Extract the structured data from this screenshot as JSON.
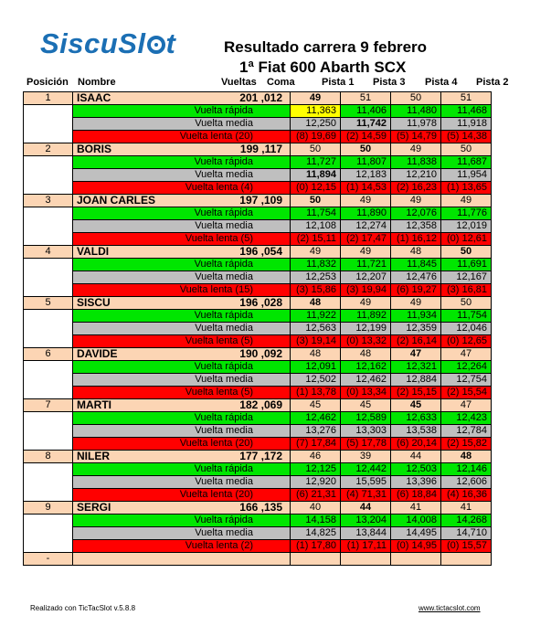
{
  "logo": "SiscuSl",
  "logo_tail": "t",
  "title": "Resultado carrera 9 febrero",
  "subtitle": "1ª Fiat 600 Abarth SCX",
  "headers": {
    "posicion": "Posición",
    "nombre": "Nombre",
    "vueltas": "Vueltas",
    "coma": "Coma",
    "pistas": [
      "Pista 1",
      "Pista 3",
      "Pista 4",
      "Pista 2"
    ]
  },
  "labels": {
    "fast": "Vuelta rápida",
    "avg": "Vuelta media"
  },
  "racers": [
    {
      "pos": "1",
      "name": "ISAAC",
      "laps": "201",
      "coma": ",012",
      "pistas": [
        "49",
        "51",
        "50",
        "51"
      ],
      "bold": [
        0
      ],
      "slow": "Vuelta  lenta (20)",
      "fast": [
        "11,363",
        "11,406",
        "11,480",
        "11,468"
      ],
      "fast_bold": [],
      "fast_hl": [
        0
      ],
      "avg": [
        "12,250",
        "11,742",
        "11,978",
        "11,918"
      ],
      "avg_bold": [
        1
      ],
      "slowv": [
        "(8) 19,69",
        "(2) 14,59",
        "(5) 14,79",
        "(5) 14,38"
      ]
    },
    {
      "pos": "2",
      "name": "BORIS",
      "laps": "199",
      "coma": ",117",
      "pistas": [
        "50",
        "50",
        "49",
        "50"
      ],
      "bold": [
        1
      ],
      "slow": "Vuelta  lenta (4)",
      "fast": [
        "11,727",
        "11,807",
        "11,838",
        "11,687"
      ],
      "fast_bold": [],
      "fast_hl": [],
      "avg": [
        "11,894",
        "12,183",
        "12,210",
        "11,954"
      ],
      "avg_bold": [
        0
      ],
      "slowv": [
        "(0) 12,15",
        "(1) 14,53",
        "(2) 16,23",
        "(1) 13,65"
      ]
    },
    {
      "pos": "3",
      "name": "JOAN CARLES",
      "laps": "197",
      "coma": ",109",
      "pistas": [
        "50",
        "49",
        "49",
        "49"
      ],
      "bold": [
        0
      ],
      "slow": "Vuelta  lenta (5)",
      "fast": [
        "11,754",
        "11,890",
        "12,076",
        "11,776"
      ],
      "fast_bold": [],
      "fast_hl": [],
      "avg": [
        "12,108",
        "12,274",
        "12,358",
        "12,019"
      ],
      "avg_bold": [],
      "slowv": [
        "(2) 15,11",
        "(2) 17,47",
        "(1) 16,12",
        "(0) 12,61"
      ]
    },
    {
      "pos": "4",
      "name": "VALDI",
      "laps": "196",
      "coma": ",054",
      "pistas": [
        "49",
        "49",
        "48",
        "50"
      ],
      "bold": [
        3
      ],
      "slow": "Vuelta  lenta (15)",
      "fast": [
        "11,832",
        "11,721",
        "11,845",
        "11,691"
      ],
      "fast_bold": [],
      "fast_hl": [],
      "avg": [
        "12,253",
        "12,207",
        "12,476",
        "12,167"
      ],
      "avg_bold": [],
      "slowv": [
        "(3) 15,86",
        "(3) 19,94",
        "(6) 19,27",
        "(3) 16,81"
      ]
    },
    {
      "pos": "5",
      "name": "SISCU",
      "laps": "196",
      "coma": ",028",
      "pistas": [
        "48",
        "49",
        "49",
        "50"
      ],
      "bold": [
        0
      ],
      "slow": "Vuelta  lenta (5)",
      "fast": [
        "11,922",
        "11,892",
        "11,934",
        "11,754"
      ],
      "fast_bold": [],
      "fast_hl": [],
      "avg": [
        "12,563",
        "12,199",
        "12,359",
        "12,046"
      ],
      "avg_bold": [],
      "slowv": [
        "(3) 19,14",
        "(0) 13,32",
        "(2) 16,14",
        "(0) 12,65"
      ]
    },
    {
      "pos": "6",
      "name": "DAVIDE",
      "laps": "190",
      "coma": ",092",
      "pistas": [
        "48",
        "48",
        "47",
        "47"
      ],
      "bold": [
        2
      ],
      "slow": "Vuelta  lenta (5)",
      "fast": [
        "12,091",
        "12,162",
        "12,321",
        "12,264"
      ],
      "fast_bold": [],
      "fast_hl": [],
      "avg": [
        "12,502",
        "12,462",
        "12,884",
        "12,754"
      ],
      "avg_bold": [],
      "slowv": [
        "(1) 13,78",
        "(0) 13,34",
        "(2) 15,15",
        "(2) 15,54"
      ]
    },
    {
      "pos": "7",
      "name": "MARTI",
      "laps": "182",
      "coma": ",069",
      "pistas": [
        "45",
        "45",
        "45",
        "47"
      ],
      "bold": [
        2
      ],
      "slow": "Vuelta  lenta (20)",
      "fast": [
        "12,462",
        "12,589",
        "12,633",
        "12,423"
      ],
      "fast_bold": [],
      "fast_hl": [],
      "avg": [
        "13,276",
        "13,303",
        "13,538",
        "12,784"
      ],
      "avg_bold": [],
      "slowv": [
        "(7) 17,84",
        "(5) 17,78",
        "(6) 20,14",
        "(2) 15,82"
      ]
    },
    {
      "pos": "8",
      "name": "NILER",
      "laps": "177",
      "coma": ",172",
      "pistas": [
        "46",
        "39",
        "44",
        "48"
      ],
      "bold": [
        3
      ],
      "slow": "Vuelta  lenta (20)",
      "fast": [
        "12,125",
        "12,442",
        "12,503",
        "12,146"
      ],
      "fast_bold": [],
      "fast_hl": [],
      "avg": [
        "12,920",
        "15,595",
        "13,396",
        "12,606"
      ],
      "avg_bold": [],
      "slowv": [
        "(6) 21,31",
        "(4) 71,31",
        "(6) 18,84",
        "(4) 16,36"
      ]
    },
    {
      "pos": "9",
      "name": "SERGI",
      "laps": "166",
      "coma": ",135",
      "pistas": [
        "40",
        "44",
        "41",
        "41"
      ],
      "bold": [
        1
      ],
      "slow": "Vuelta  lenta (2)",
      "fast": [
        "14,158",
        "13,204",
        "14,008",
        "14,268"
      ],
      "fast_bold": [],
      "fast_hl": [],
      "avg": [
        "14,825",
        "13,844",
        "14,495",
        "14,710"
      ],
      "avg_bold": [],
      "slowv": [
        "(1) 17,80",
        "(1) 17,11",
        "(0) 14,95",
        "(0) 15,57"
      ]
    }
  ],
  "empty_pos": "-",
  "footer": {
    "left": "Realizado con TicTacSlot v.5.8.8",
    "right": "www.tictacslot.com"
  }
}
